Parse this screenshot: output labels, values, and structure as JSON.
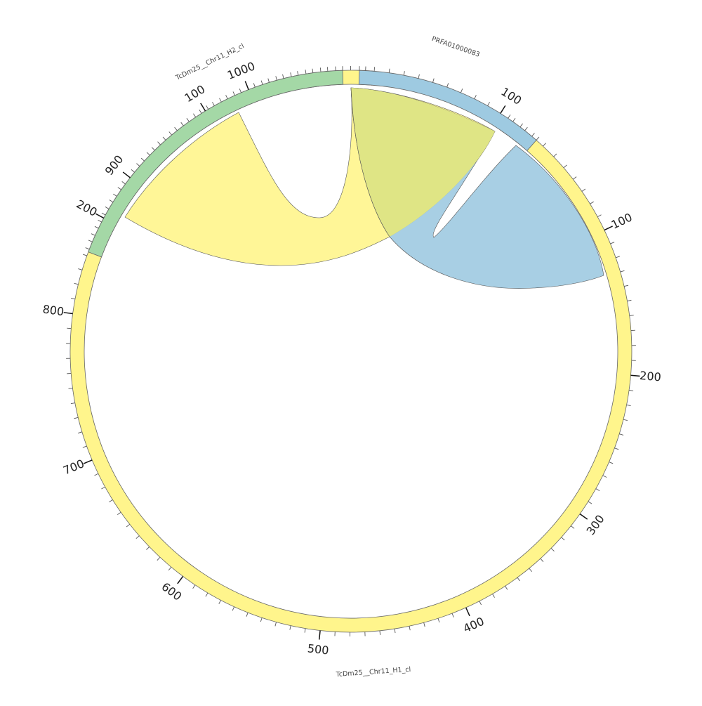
{
  "chart_data": {
    "type": "chord",
    "segments": [
      {
        "name": "TcDm25__Chr11_H1_cl",
        "color": "#fff58c",
        "major_ticks": [
          "100",
          "200",
          "300",
          "400",
          "500",
          "600",
          "700",
          "800",
          "900",
          "1000"
        ]
      },
      {
        "name": "TcDm25__Chr11_H2_cl",
        "color": "#a4d8a6",
        "major_ticks": [
          "100",
          "200"
        ]
      },
      {
        "name": "PRFA01000083",
        "color": "#9ecae1",
        "major_ticks": [
          "100"
        ]
      }
    ],
    "links": [
      {
        "from": "TcDm25__Chr11_H2_cl",
        "to": "TcDm25__Chr11_H1_cl",
        "color": "#fff58c"
      },
      {
        "from": "PRFA01000083",
        "to": "TcDm25__Chr11_H1_cl",
        "color": "#9ecae1"
      }
    ]
  }
}
